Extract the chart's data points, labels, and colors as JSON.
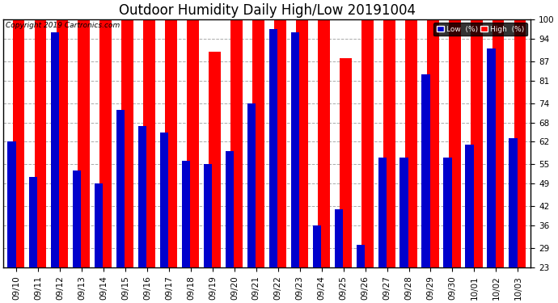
{
  "title": "Outdoor Humidity Daily High/Low 20191004",
  "copyright": "Copyright 2019 Cartronics.com",
  "dates": [
    "09/10",
    "09/11",
    "09/12",
    "09/13",
    "09/14",
    "09/15",
    "09/16",
    "09/17",
    "09/18",
    "09/19",
    "09/20",
    "09/21",
    "09/22",
    "09/23",
    "09/24",
    "09/25",
    "09/26",
    "09/27",
    "09/28",
    "09/29",
    "09/30",
    "10/01",
    "10/02",
    "10/03"
  ],
  "high": [
    100,
    100,
    100,
    100,
    100,
    100,
    100,
    100,
    100,
    90,
    100,
    100,
    100,
    100,
    100,
    88,
    100,
    100,
    100,
    100,
    100,
    100,
    100,
    100
  ],
  "low": [
    62,
    51,
    96,
    53,
    49,
    72,
    67,
    65,
    56,
    55,
    59,
    74,
    97,
    96,
    36,
    41,
    30,
    57,
    57,
    83,
    57,
    61,
    91,
    63
  ],
  "high_color": "#ff0000",
  "low_color": "#0000cc",
  "bg_color": "#ffffff",
  "grid_color": "#aaaaaa",
  "yticks": [
    23,
    29,
    36,
    42,
    49,
    55,
    62,
    68,
    74,
    81,
    87,
    94,
    100
  ],
  "ymin": 23,
  "ymax": 100,
  "title_fontsize": 12,
  "tick_fontsize": 7.5,
  "legend_low_label": "Low  (%)",
  "legend_high_label": "High  (%)"
}
